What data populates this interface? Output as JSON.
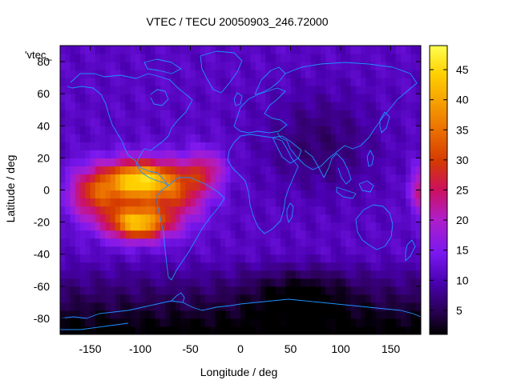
{
  "chart_data": {
    "type": "heatmap",
    "title": "VTEC / TECU 20050903_246.72000",
    "xlabel": "Longitude / deg",
    "ylabel": "Latitude / deg",
    "xlim": [
      -180,
      180
    ],
    "ylim": [
      -90,
      90
    ],
    "x_ticks": [
      -150,
      -100,
      -50,
      0,
      50,
      100,
      150
    ],
    "y_ticks": [
      -80,
      -60,
      -40,
      -20,
      0,
      20,
      40,
      60,
      80
    ],
    "colorbar": {
      "range": [
        1,
        49
      ],
      "ticks": [
        5,
        10,
        15,
        20,
        25,
        30,
        35,
        40,
        45
      ],
      "palette": [
        "#000000",
        "#3a0080",
        "#6a10e0",
        "#a020f0",
        "#c8108a",
        "#d43a00",
        "#ec7800",
        "#f8b000",
        "#ffe000",
        "#ffff60"
      ]
    },
    "legend_key": "'vtec_",
    "overlay": "coastlines",
    "overlay_color": "#1e90ff",
    "grid": false,
    "features": [
      {
        "lon": -100,
        "lat": 5,
        "vtec": 47
      },
      {
        "lon": -105,
        "lat": -20,
        "vtec": 46
      },
      {
        "lon": -140,
        "lat": 0,
        "vtec": 30
      },
      {
        "lon": -60,
        "lat": -5,
        "vtec": 34
      },
      {
        "lon": -40,
        "lat": 15,
        "vtec": 28
      },
      {
        "lon": 180,
        "lat": 0,
        "vtec": 24
      },
      {
        "lon": 60,
        "lat": -70,
        "vtec": 2
      },
      {
        "lon": 80,
        "lat": 40,
        "vtec": 6
      },
      {
        "lon": 0,
        "lat": 0,
        "vtec": 12
      }
    ]
  }
}
